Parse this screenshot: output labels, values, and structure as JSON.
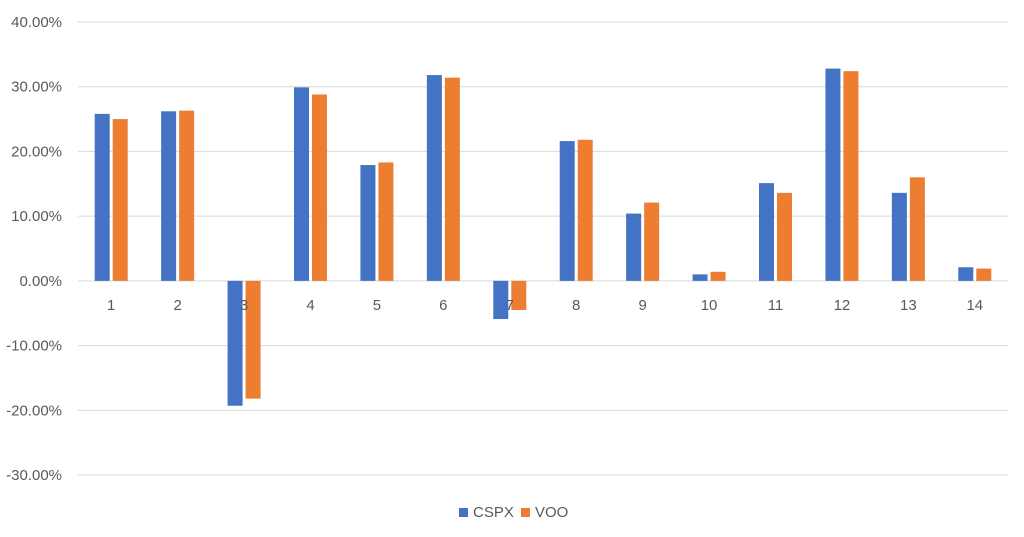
{
  "chart_data": {
    "type": "bar",
    "title": "",
    "xlabel": "",
    "ylabel": "",
    "categories": [
      "1",
      "2",
      "3",
      "4",
      "5",
      "6",
      "7",
      "8",
      "9",
      "10",
      "11",
      "12",
      "13",
      "14"
    ],
    "series": [
      {
        "name": "CSPX",
        "color": "#4472C4",
        "values": [
          0.258,
          0.262,
          -0.193,
          0.299,
          0.179,
          0.318,
          -0.059,
          0.216,
          0.104,
          0.01,
          0.151,
          0.328,
          0.136,
          0.021
        ]
      },
      {
        "name": "VOO",
        "color": "#ED7D31",
        "values": [
          0.25,
          0.263,
          -0.182,
          0.288,
          0.183,
          0.314,
          -0.045,
          0.218,
          0.121,
          0.014,
          0.136,
          0.324,
          0.16,
          0.019
        ]
      }
    ],
    "ylim": [
      -0.3,
      0.4
    ],
    "yticks": [
      0.4,
      0.3,
      0.2,
      0.1,
      0.0,
      -0.1,
      -0.2,
      -0.3
    ],
    "ytick_labels": [
      "40.00%",
      "30.00%",
      "20.00%",
      "10.00%",
      "0.00%",
      "-10.00%",
      "-20.00%",
      "-30.00%"
    ],
    "grid": true,
    "legend_position": "bottom"
  }
}
